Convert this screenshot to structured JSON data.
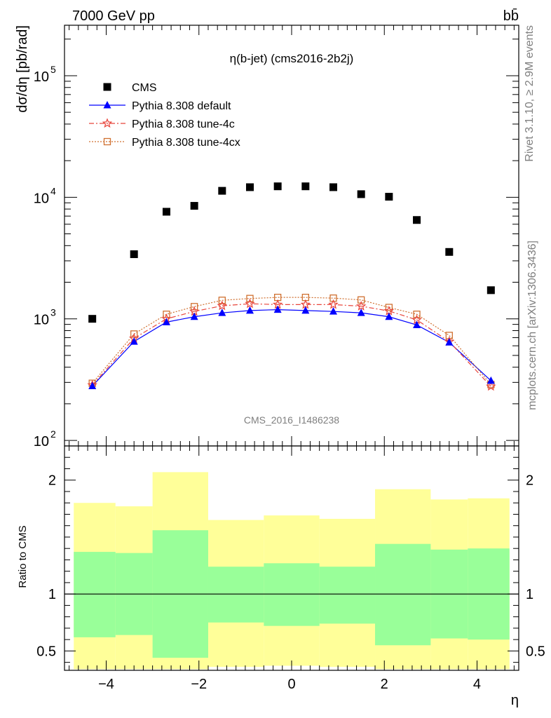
{
  "header": {
    "left": "7000 GeV pp",
    "right": "bb̄"
  },
  "side_labels": {
    "rivet": "Rivet 3.1.10, ≥ 2.9M events",
    "mcplots": "mcplots.cern.ch [arXiv:1306.3436]"
  },
  "chart_data": {
    "type": "scatter",
    "title": "η(b-jet) (cms2016-2b2j)",
    "watermark": "CMS_2016_I1486238",
    "xlabel": "η",
    "ylabel": "dσ/dη [pb/rad]",
    "ratio_ylabel": "Ratio to CMS",
    "xlim": [
      -4.9,
      4.9
    ],
    "ylim": [
      90,
      260000
    ],
    "yscale": "log",
    "ratio_ylim": [
      0.33,
      2.3
    ],
    "x_ticks": [
      "−4",
      "−2",
      "0",
      "2",
      "4"
    ],
    "y_ticks": [
      "10^2",
      "10^3",
      "10^4",
      "10^5"
    ],
    "ratio_ticks": [
      "0.5",
      "1",
      "2"
    ],
    "legend_position": "top-left",
    "x": [
      -4.3,
      -3.4,
      -2.7,
      -2.1,
      -1.5,
      -0.9,
      -0.3,
      0.3,
      0.9,
      1.5,
      2.1,
      2.7,
      3.4,
      4.3
    ],
    "series": [
      {
        "name": "CMS",
        "color": "#000000",
        "marker": "square",
        "values": [
          1000,
          3400,
          7600,
          8500,
          11300,
          12100,
          12300,
          12300,
          12100,
          10600,
          10100,
          6500,
          3550,
          1720
        ]
      },
      {
        "name": "Pythia 8.308 default",
        "color": "#0000ff",
        "marker": "triangle",
        "values": [
          280,
          650,
          940,
          1040,
          1120,
          1170,
          1190,
          1170,
          1150,
          1120,
          1040,
          890,
          640,
          310
        ]
      },
      {
        "name": "Pythia 8.308 tune-4c",
        "color": "#e8443a",
        "marker": "star",
        "values": [
          285,
          690,
          1000,
          1150,
          1280,
          1330,
          1310,
          1310,
          1310,
          1270,
          1160,
          980,
          650,
          278
        ]
      },
      {
        "name": "Pythia 8.308 tune-4cx",
        "color": "#d07030",
        "marker": "open-square",
        "values": [
          295,
          750,
          1090,
          1260,
          1420,
          1470,
          1500,
          1500,
          1480,
          1430,
          1240,
          1090,
          730,
          288
        ]
      }
    ],
    "ratio_bands": {
      "edges": [
        -4.7,
        -3.8,
        -3.0,
        -1.8,
        -0.6,
        0.6,
        1.8,
        3.0,
        3.8,
        4.7
      ],
      "yellow": [
        [
          0.34,
          1.8
        ],
        [
          0.34,
          1.77
        ],
        [
          0.34,
          2.07
        ],
        [
          0.36,
          1.65
        ],
        [
          0.37,
          1.69
        ],
        [
          0.36,
          1.66
        ],
        [
          0.34,
          1.92
        ],
        [
          0.34,
          1.83
        ],
        [
          0.34,
          1.84
        ]
      ],
      "green": [
        [
          0.62,
          1.37
        ],
        [
          0.64,
          1.36
        ],
        [
          0.44,
          1.56
        ],
        [
          0.75,
          1.24
        ],
        [
          0.72,
          1.27
        ],
        [
          0.74,
          1.24
        ],
        [
          0.55,
          1.44
        ],
        [
          0.61,
          1.39
        ],
        [
          0.6,
          1.4
        ]
      ]
    }
  }
}
